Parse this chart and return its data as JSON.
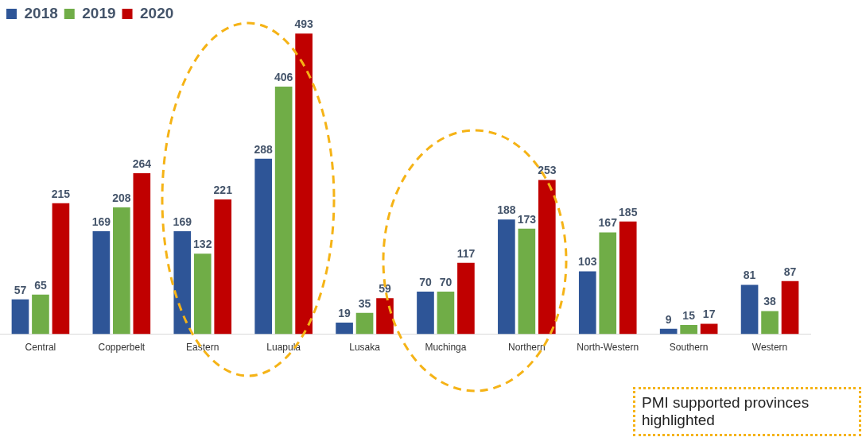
{
  "chart_data": {
    "type": "bar",
    "categories": [
      "Central",
      "Copperbelt",
      "Eastern",
      "Luapula",
      "Lusaka",
      "Muchinga",
      "Northern",
      "North-Western",
      "Southern",
      "Western"
    ],
    "series": [
      {
        "name": "2018",
        "color": "#2e5597",
        "values": [
          57,
          169,
          169,
          288,
          19,
          70,
          188,
          103,
          9,
          81
        ]
      },
      {
        "name": "2019",
        "color": "#70ad47",
        "values": [
          65,
          208,
          132,
          406,
          35,
          70,
          173,
          167,
          15,
          38
        ]
      },
      {
        "name": "2020",
        "color": "#c00000",
        "values": [
          215,
          264,
          221,
          493,
          59,
          117,
          253,
          185,
          17,
          87
        ]
      }
    ],
    "data_labels": true,
    "grid": false,
    "legend": "top left",
    "annotations": [
      "PMI supported provinces highlighted"
    ]
  }
}
